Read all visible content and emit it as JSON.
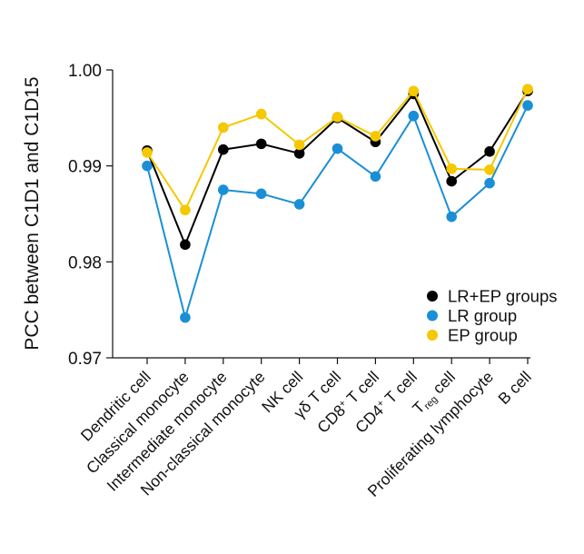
{
  "chart_data": {
    "type": "line",
    "title": "",
    "xlabel": "",
    "ylabel": "PCC between C1D1 and C1D15",
    "ylim": [
      0.97,
      1.0
    ],
    "yticks": [
      0.97,
      0.98,
      0.99,
      1.0
    ],
    "ytick_labels": [
      "0.97",
      "0.98",
      "0.99",
      "1.00"
    ],
    "legend_position": "bottom-right",
    "grid": false,
    "categories": [
      "Dendritic cell",
      "Classical monocyte",
      "Intermediate monocyte",
      "Non-classical monocyte",
      "NK cell",
      "γδ T cell",
      "CD8⁺ T cell",
      "CD4⁺ T cell",
      "Treg cell",
      "Proliferating lymphocyte",
      "B cell"
    ],
    "category_parts": [
      [
        {
          "t": "Dendritic cell"
        }
      ],
      [
        {
          "t": "Classical monocyte"
        }
      ],
      [
        {
          "t": "Intermediate monocyte"
        }
      ],
      [
        {
          "t": "Non-classical monocyte"
        }
      ],
      [
        {
          "t": "NK cell"
        }
      ],
      [
        {
          "t": "γδ T cell"
        }
      ],
      [
        {
          "t": "CD8"
        },
        {
          "t": "+",
          "s": "sup"
        },
        {
          "t": " T cell"
        }
      ],
      [
        {
          "t": "CD4"
        },
        {
          "t": "+",
          "s": "sup"
        },
        {
          "t": " T cell"
        }
      ],
      [
        {
          "t": "T"
        },
        {
          "t": "reg",
          "s": "sub"
        },
        {
          "t": " cell"
        }
      ],
      [
        {
          "t": "Proliferating lymphocyte"
        }
      ],
      [
        {
          "t": "B cell"
        }
      ]
    ],
    "series": [
      {
        "name": "LR+EP groups",
        "color": "#000000",
        "values": [
          0.9916,
          0.9818,
          0.9917,
          0.9923,
          0.9913,
          0.995,
          0.9925,
          0.9975,
          0.9884,
          0.9915,
          0.9978
        ]
      },
      {
        "name": "LR group",
        "color": "#1a8fd6",
        "values": [
          0.99,
          0.9742,
          0.9875,
          0.9871,
          0.986,
          0.9918,
          0.9889,
          0.9952,
          0.9847,
          0.9882,
          0.9963
        ]
      },
      {
        "name": "EP group",
        "color": "#f5c800",
        "values": [
          0.9914,
          0.9854,
          0.994,
          0.9954,
          0.9922,
          0.9951,
          0.9931,
          0.9978,
          0.9897,
          0.9896,
          0.998
        ]
      }
    ],
    "draw_order": [
      1,
      0,
      2
    ]
  }
}
